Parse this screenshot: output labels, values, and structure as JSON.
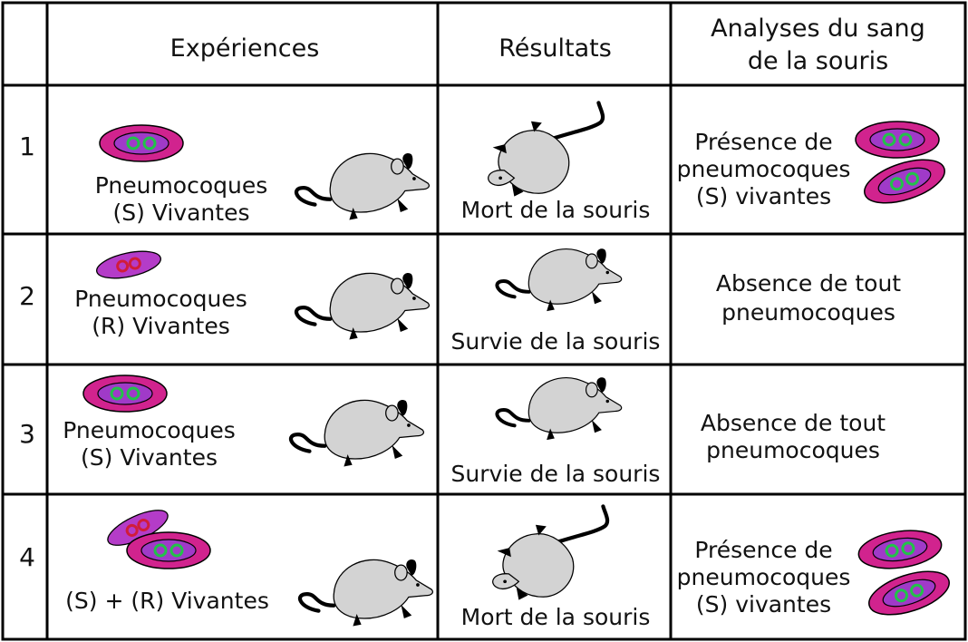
{
  "header": {
    "experiences": "Expériences",
    "results": "Résultats",
    "analyses_line1": "Analyses du sang",
    "analyses_line2": "de la souris"
  },
  "rows": [
    {
      "number": "1",
      "bacteria_line1": "Pneumocoques",
      "bacteria_line2": "(S) Vivantes",
      "result": "Mort de la souris",
      "analysis_line1": "Présence de",
      "analysis_line2": "pneumocoques",
      "analysis_line3": "(S) vivantes"
    },
    {
      "number": "2",
      "bacteria_line1": "Pneumocoques",
      "bacteria_line2": "(R) Vivantes",
      "result": "Survie de la souris",
      "analysis_line1": "Absence de tout",
      "analysis_line2": "pneumocoques"
    },
    {
      "number": "3",
      "bacteria_line1": "Pneumocoques",
      "bacteria_line2": "(S) Vivantes",
      "result": "Survie de la souris",
      "analysis_line1": "Absence de tout",
      "analysis_line2": "pneumocoques"
    },
    {
      "number": "4",
      "bacteria_line1": "(S) + (R) Vivantes",
      "result": "Mort de la souris",
      "analysis_line1": "Présence de",
      "analysis_line2": "pneumocoques",
      "analysis_line3": "(S) vivantes"
    }
  ],
  "colors": {
    "capsule_s": "#d1238e",
    "cell_s": "#a03ac8",
    "cell_r": "#b43cc8",
    "nucleus_s": "#22c24a",
    "nucleus_r": "#d11c3a",
    "mouse_body": "#d3d3d3",
    "mouse_dark": "#000000",
    "grid_line": "#000000"
  }
}
